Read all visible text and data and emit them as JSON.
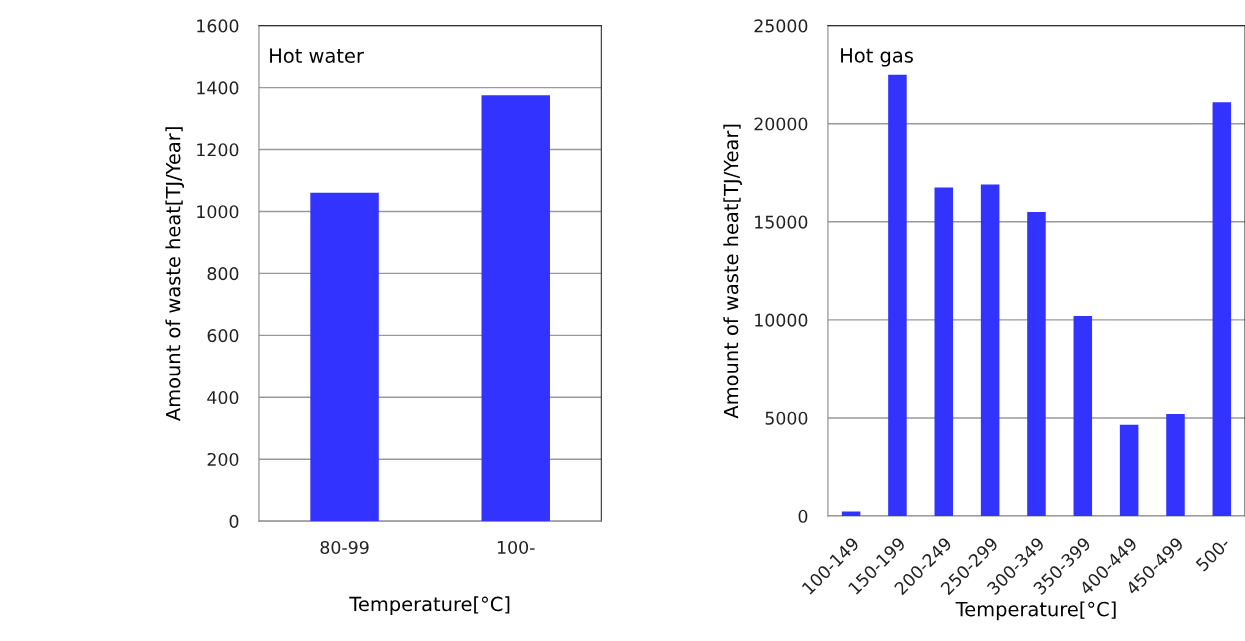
{
  "chart_data": [
    {
      "type": "bar",
      "title": "Hot water",
      "xlabel": "Temperature[°C]",
      "ylabel": "Amount of waste heat[TJ/Year]",
      "categories": [
        "80-99",
        "100-"
      ],
      "values": [
        1060,
        1375
      ],
      "color": "#3333ff",
      "ylim": [
        0,
        1600
      ],
      "yticks": [
        0,
        200,
        400,
        600,
        800,
        1000,
        1200,
        1400,
        1600
      ],
      "grid": "y"
    },
    {
      "type": "bar",
      "title": "Hot gas",
      "xlabel": "Temperature[°C]",
      "ylabel": "Amount of waste heat[TJ/Year]",
      "categories": [
        "100-149",
        "150-199",
        "200-249",
        "250-299",
        "300-349",
        "350-399",
        "400-449",
        "450-499",
        "500-"
      ],
      "values": [
        230,
        22500,
        16750,
        16900,
        15500,
        10200,
        4650,
        5200,
        21100
      ],
      "color": "#3333ff",
      "ylim": [
        0,
        25000
      ],
      "yticks": [
        0,
        5000,
        10000,
        15000,
        20000,
        25000
      ],
      "grid": "y"
    }
  ]
}
